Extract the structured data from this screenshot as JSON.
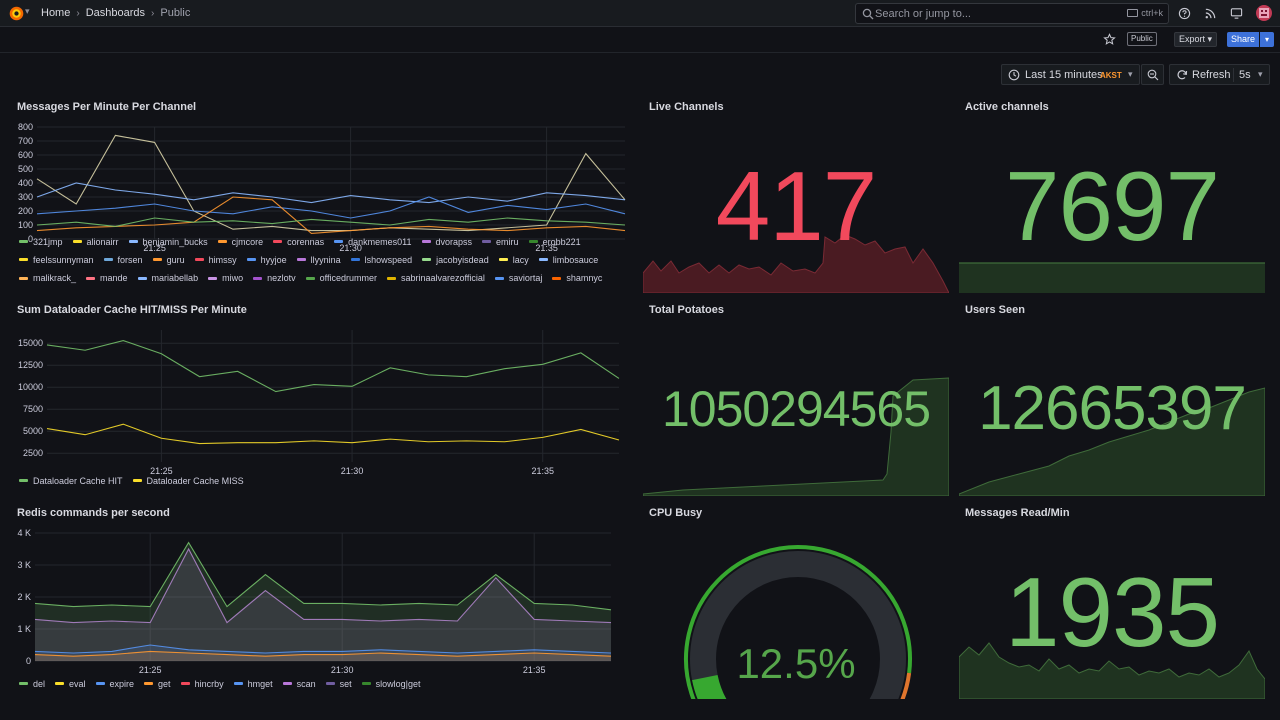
{
  "nav": {
    "breadcrumbs": [
      "Home",
      "Dashboards",
      "Public"
    ],
    "search_placeholder": "Search or jump to...",
    "search_shortcut": "ctrl+k"
  },
  "toolbar": {
    "public_badge": "Public",
    "export_label": "Export",
    "share_label": "Share",
    "time_range": "Last 15 minutes",
    "timezone": "AKST",
    "refresh_label": "Refresh",
    "refresh_interval": "5s"
  },
  "colors": {
    "red": "#f2495c",
    "green": "#73bf69",
    "yellow": "#fade2a",
    "orange": "#ff9830",
    "blue": "#5794f2",
    "purple": "#b877d9",
    "accent": "#3d71d9"
  },
  "panels": {
    "messages": {
      "title": "Messages Per Minute Per Channel",
      "xticks": [
        "21:25",
        "21:30",
        "21:35"
      ],
      "legend": [
        {
          "label": "321jmp",
          "color": "#73bf69"
        },
        {
          "label": "alionairr",
          "color": "#fade2a"
        },
        {
          "label": "benjamin_bucks",
          "color": "#8ab8ff"
        },
        {
          "label": "cjmcore",
          "color": "#ff9830"
        },
        {
          "label": "corennas",
          "color": "#f2495c"
        },
        {
          "label": "dankmemes011",
          "color": "#5794f2"
        },
        {
          "label": "dvorapss",
          "color": "#b877d9"
        },
        {
          "label": "emiru",
          "color": "#705da0"
        },
        {
          "label": "erobb221",
          "color": "#37872d"
        },
        {
          "label": "feelssunnyman",
          "color": "#fade2a"
        },
        {
          "label": "forsen",
          "color": "#6ea7d9"
        },
        {
          "label": "guru",
          "color": "#ff9830"
        },
        {
          "label": "himssy",
          "color": "#f2495c"
        },
        {
          "label": "hyyjoe",
          "color": "#5794f2"
        },
        {
          "label": "llyynina",
          "color": "#b877d9"
        },
        {
          "label": "lshowspeed",
          "color": "#3274d9"
        },
        {
          "label": "jacobyisdead",
          "color": "#96d98d"
        },
        {
          "label": "lacy",
          "color": "#ffee52"
        },
        {
          "label": "limbosauce",
          "color": "#8ab8ff"
        },
        {
          "label": "malikrack_",
          "color": "#ffb357"
        },
        {
          "label": "mande",
          "color": "#ff7383"
        },
        {
          "label": "mariabellab",
          "color": "#8ab8ff"
        },
        {
          "label": "miwo",
          "color": "#ca95e5"
        },
        {
          "label": "nezlotv",
          "color": "#a352cc"
        },
        {
          "label": "officedrummer",
          "color": "#56a64b"
        },
        {
          "label": "sabrinaalvarezofficial",
          "color": "#e0b400"
        },
        {
          "label": "saviortaj",
          "color": "#5794f2"
        },
        {
          "label": "shamnyc",
          "color": "#fa6400"
        }
      ]
    },
    "cache": {
      "title": "Sum Dataloader Cache HIT/MISS Per Minute",
      "xticks": [
        "21:25",
        "21:30",
        "21:35"
      ],
      "legend": [
        {
          "label": "Dataloader Cache HIT",
          "color": "#73bf69"
        },
        {
          "label": "Dataloader Cache MISS",
          "color": "#fade2a"
        }
      ]
    },
    "redis": {
      "title": "Redis commands per second",
      "xticks": [
        "21:25",
        "21:30",
        "21:35"
      ],
      "legend": [
        {
          "label": "del",
          "color": "#73bf69"
        },
        {
          "label": "eval",
          "color": "#fade2a"
        },
        {
          "label": "expire",
          "color": "#5794f2"
        },
        {
          "label": "get",
          "color": "#ff9830"
        },
        {
          "label": "hincrby",
          "color": "#f2495c"
        },
        {
          "label": "hmget",
          "color": "#5794f2"
        },
        {
          "label": "scan",
          "color": "#b877d9"
        },
        {
          "label": "set",
          "color": "#705da0"
        },
        {
          "label": "slowlog|get",
          "color": "#37872d"
        }
      ]
    },
    "live_channels": {
      "title": "Live Channels",
      "value": "417"
    },
    "active_channels": {
      "title": "Active channels",
      "value": "7697"
    },
    "total_potatoes": {
      "title": "Total Potatoes",
      "value": "1050294565"
    },
    "users_seen": {
      "title": "Users Seen",
      "value": "12665397"
    },
    "cpu_busy": {
      "title": "CPU Busy",
      "value": "12.5%",
      "percent": 12.5
    },
    "messages_read": {
      "title": "Messages Read/Min",
      "value": "1935"
    }
  },
  "chart_data": [
    {
      "type": "line",
      "title": "Messages Per Minute Per Channel",
      "x": [
        "21:22",
        "21:23",
        "21:24",
        "21:25",
        "21:26",
        "21:27",
        "21:28",
        "21:29",
        "21:30",
        "21:31",
        "21:32",
        "21:33",
        "21:34",
        "21:35",
        "21:36",
        "21:37"
      ],
      "ylim": [
        0,
        800
      ],
      "yticks": [
        0,
        100,
        200,
        300,
        400,
        500,
        600,
        700,
        800
      ],
      "series": [
        {
          "name": "321jmp",
          "values": [
            430,
            250,
            740,
            690,
            200,
            70,
            90,
            60,
            60,
            80,
            70,
            60,
            80,
            100,
            610,
            280
          ]
        },
        {
          "name": "benjamin_bucks",
          "values": [
            300,
            400,
            350,
            320,
            280,
            330,
            300,
            260,
            310,
            280,
            260,
            300,
            270,
            330,
            310,
            280
          ]
        },
        {
          "name": "dankmemes011",
          "values": [
            180,
            200,
            220,
            250,
            200,
            180,
            230,
            200,
            150,
            200,
            300,
            190,
            240,
            210,
            250,
            180
          ]
        },
        {
          "name": "cjmcore",
          "values": [
            60,
            80,
            90,
            100,
            120,
            300,
            280,
            40,
            60,
            80,
            90,
            70,
            60,
            80,
            90,
            60
          ]
        },
        {
          "name": "erobb221",
          "values": [
            100,
            120,
            90,
            150,
            120,
            130,
            110,
            140,
            120,
            100,
            140,
            120,
            150,
            130,
            120,
            100
          ]
        }
      ]
    },
    {
      "type": "line",
      "title": "Sum Dataloader Cache HIT/MISS Per Minute",
      "x": [
        "21:22",
        "21:23",
        "21:24",
        "21:25",
        "21:26",
        "21:27",
        "21:28",
        "21:29",
        "21:30",
        "21:31",
        "21:32",
        "21:33",
        "21:34",
        "21:35",
        "21:36",
        "21:37"
      ],
      "ylim": [
        1500,
        16500
      ],
      "yticks": [
        2500,
        5000,
        7500,
        10000,
        12500,
        15000
      ],
      "series": [
        {
          "name": "Dataloader Cache HIT",
          "values": [
            14800,
            14200,
            15300,
            13800,
            11200,
            11800,
            9500,
            10300,
            10100,
            12200,
            11400,
            11200,
            12100,
            12600,
            13900,
            11000
          ]
        },
        {
          "name": "Dataloader Cache MISS",
          "values": [
            5300,
            4600,
            5800,
            4200,
            3600,
            3700,
            3700,
            3900,
            3700,
            4100,
            3800,
            3900,
            3800,
            4300,
            5200,
            4000
          ]
        }
      ]
    },
    {
      "type": "area",
      "title": "Redis commands per second",
      "x": [
        "21:22",
        "21:23",
        "21:24",
        "21:25",
        "21:26",
        "21:27",
        "21:28",
        "21:29",
        "21:30",
        "21:31",
        "21:32",
        "21:33",
        "21:34",
        "21:35",
        "21:36",
        "21:37"
      ],
      "ylim": [
        0,
        4000
      ],
      "yticks": [
        "0",
        "1 K",
        "2 K",
        "3 K",
        "4 K"
      ],
      "series": [
        {
          "name": "scan",
          "values": [
            1300,
            1200,
            1250,
            1200,
            3500,
            1200,
            2200,
            1300,
            1300,
            1250,
            1300,
            1250,
            2600,
            1300,
            1250,
            1200
          ]
        },
        {
          "name": "slowlog|get",
          "values": [
            1800,
            1700,
            1750,
            1700,
            3700,
            1700,
            2700,
            1800,
            1800,
            1750,
            1800,
            1750,
            2700,
            1800,
            1750,
            1600
          ]
        },
        {
          "name": "expire",
          "values": [
            300,
            250,
            300,
            500,
            350,
            300,
            250,
            300,
            300,
            350,
            300,
            250,
            300,
            350,
            300,
            250
          ]
        },
        {
          "name": "get",
          "values": [
            200,
            150,
            200,
            300,
            250,
            200,
            150,
            200,
            200,
            250,
            200,
            150,
            200,
            250,
            200,
            150
          ]
        }
      ]
    }
  ]
}
